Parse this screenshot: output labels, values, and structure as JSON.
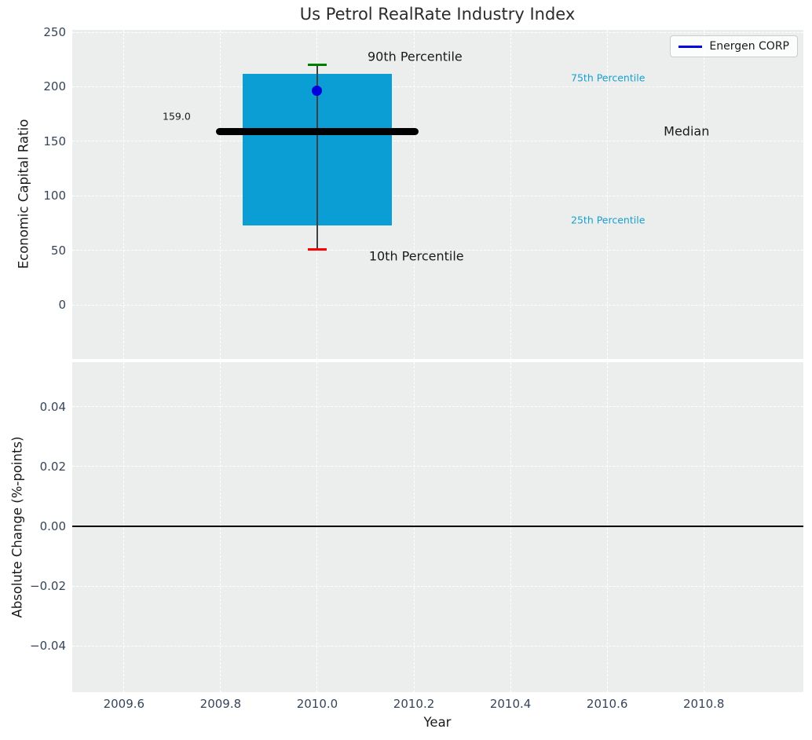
{
  "title": "Us Petrol RealRate Industry Index",
  "legend": {
    "label": "Energen CORP",
    "line_color": "#0000DD"
  },
  "colors": {
    "plot_background": "#EBEEED",
    "grid": "#ffffff",
    "box": "#0A9ED5",
    "median_line": "#000000",
    "whisker": "#404040",
    "cap_90th": "#008000",
    "cap_10th": "#FF0000",
    "company_point": "#0000DD",
    "tick_label": "#36455A",
    "percentile_annotation": "#179FCF",
    "text": "#1a1a1a",
    "zero_line": "#000000"
  },
  "chart_data": [
    {
      "type": "box",
      "title": "Us Petrol RealRate Industry Index",
      "ylabel": "Economic Capital Ratio",
      "xlabel": "",
      "grid": true,
      "legend_entries": [
        "Energen CORP"
      ],
      "legend_position": "upper right",
      "box_x_center": 2010.0,
      "box_width": 0.31,
      "median_line_width": 0.418,
      "cap_width": 0.038,
      "percentiles": {
        "p10": 51,
        "p25": 73,
        "median": 159,
        "p75": 212,
        "p90": 220
      },
      "company_point": {
        "name": "Energen CORP",
        "x": 2010.0,
        "y": 196
      },
      "xlim": [
        2009.493,
        2011.006
      ],
      "ylim": [
        -49.7,
        252.2
      ],
      "yticks": [
        0,
        50,
        100,
        150,
        200,
        250
      ],
      "ytick_labels": [
        "0",
        "50",
        "100",
        "150",
        "200",
        "250"
      ],
      "xticks": [
        2009.6,
        2009.8,
        2010.0,
        2010.2,
        2010.4,
        2010.6,
        2010.8
      ],
      "annotations": [
        {
          "name": "median-value-label",
          "text": "159.0",
          "x": 2009.709,
          "y": 173,
          "color": "#1a1a1a",
          "size": 12.5,
          "anchor": "middle"
        },
        {
          "name": "90th-percentile",
          "text": "90th Percentile",
          "x": 2010.104,
          "y": 228,
          "color": "#1a1a1a",
          "size": 16,
          "anchor": "start"
        },
        {
          "name": "75th-percentile",
          "text": "75th Percentile",
          "x": 2010.525,
          "y": 208,
          "color": "#179FCF",
          "size": 12.5,
          "anchor": "start"
        },
        {
          "name": "median",
          "text": "Median",
          "x": 2010.717,
          "y": 159,
          "color": "#1a1a1a",
          "size": 16,
          "anchor": "start"
        },
        {
          "name": "25th-percentile",
          "text": "25th Percentile",
          "x": 2010.525,
          "y": 78,
          "color": "#179FCF",
          "size": 12.5,
          "anchor": "start"
        },
        {
          "name": "10th-percentile",
          "text": "10th Percentile",
          "x": 2010.107,
          "y": 45,
          "color": "#1a1a1a",
          "size": 16,
          "anchor": "start"
        }
      ]
    },
    {
      "type": "line",
      "ylabel": "Absolute Change (%-points)",
      "xlabel": "Year",
      "grid": true,
      "series": [],
      "zero_line_y": 0.0,
      "xlim": [
        2009.493,
        2011.006
      ],
      "ylim": [
        -0.0554,
        0.0549
      ],
      "yticks": [
        0.04,
        0.02,
        0.0,
        -0.02,
        -0.04
      ],
      "ytick_labels": [
        "0.04",
        "0.02",
        "0.00",
        "−0.02",
        "−0.04"
      ],
      "xticks": [
        2009.6,
        2009.8,
        2010.0,
        2010.2,
        2010.4,
        2010.6,
        2010.8
      ],
      "xtick_labels": [
        "2009.6",
        "2009.8",
        "2010.0",
        "2010.2",
        "2010.4",
        "2010.6",
        "2010.8"
      ]
    }
  ]
}
